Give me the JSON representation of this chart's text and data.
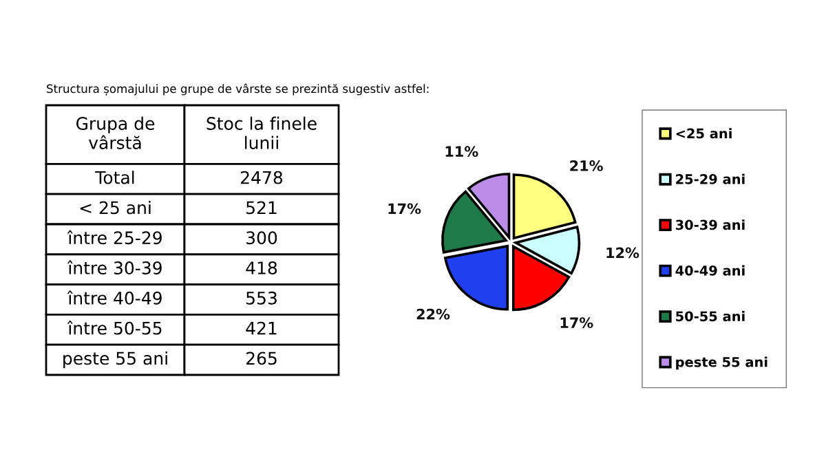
{
  "chart_data": [
    {
      "type": "other",
      "title": "Structura șomajului pe grupe de vârste se prezintă sugestiv astfel:",
      "xlabel": "Grupa de vârstă",
      "ylabel": "Stoc la finele lunii",
      "categories": [
        "Total",
        "< 25 ani",
        "între 25-29",
        "între 30-39",
        "între 40-49",
        "între 50-55",
        "peste 55 ani"
      ],
      "values": [
        2478,
        521,
        300,
        418,
        553,
        421,
        265
      ],
      "data_labels": true
    },
    {
      "type": "pie",
      "categories": [
        "<25 ani",
        "25-29 ani",
        "30-39 ani",
        "40-49 ani",
        "50-55 ani",
        "peste 55 ani"
      ],
      "values": [
        21,
        12,
        17,
        22,
        17,
        11
      ],
      "value_labels": [
        "21%",
        "12%",
        "17%",
        "22%",
        "17%",
        "11%"
      ],
      "colors": [
        "#ffff80",
        "#ccffff",
        "#ff0000",
        "#2040f0",
        "#1e7a48",
        "#bb8ce8"
      ],
      "legend": "right"
    }
  ]
}
